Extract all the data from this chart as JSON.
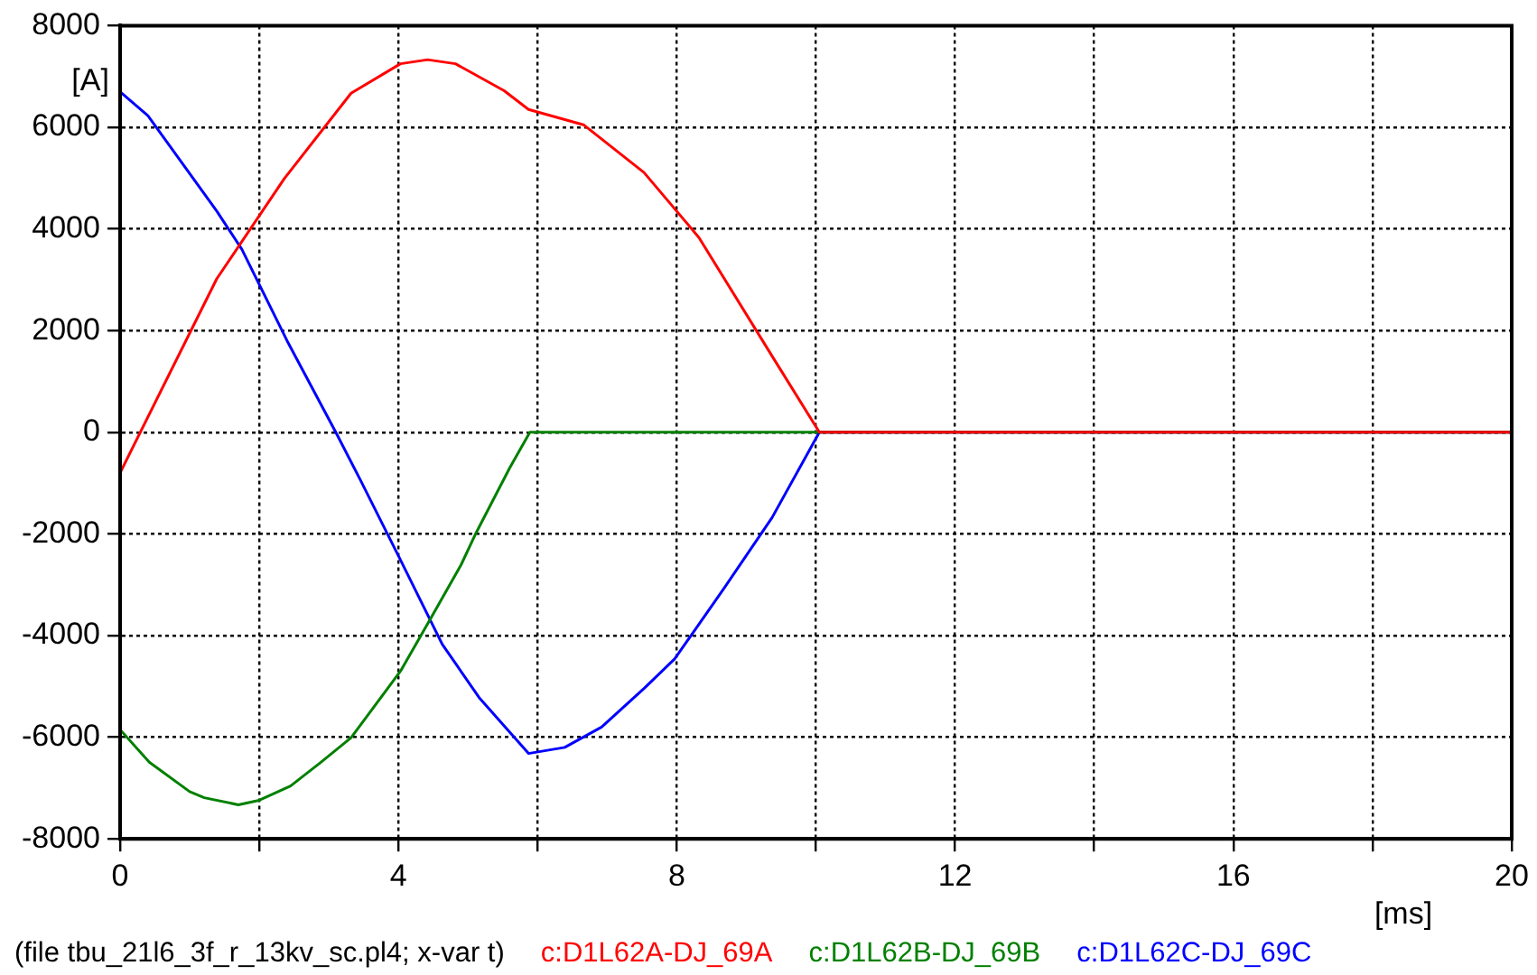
{
  "chart_data": {
    "type": "line",
    "xlabel": "[ms]",
    "ylabel": "[A]",
    "annotations": [
      "(file tbu_21l6_3f_r_13kv_sc.pl4; x-var t)"
    ],
    "xlim": [
      0,
      20
    ],
    "xticks": [
      0,
      {
        "value": 2,
        "label": null
      },
      4,
      {
        "value": 6,
        "label": null
      },
      8,
      {
        "value": 10,
        "label": null
      },
      12,
      {
        "value": 14,
        "label": null
      },
      16,
      {
        "value": 18,
        "label": null
      },
      20
    ],
    "ylim": [
      -8000,
      8000
    ],
    "yticks": [
      -8000,
      -6000,
      -4000,
      -2000,
      0,
      2000,
      4000,
      6000,
      8000
    ],
    "grid": true,
    "legend": "bottom",
    "marker": "none",
    "line_style": "solid",
    "series": [
      {
        "name": "c:D1L62A-DJ_69A",
        "color": "#ff0000",
        "x": [
          0,
          1.39,
          2.36,
          3.32,
          4.03,
          4.42,
          4.82,
          5.52,
          5.87,
          6.66,
          7.53,
          8.32,
          9.37,
          10.05,
          20
        ],
        "values": [
          -800,
          3020,
          4990,
          6670,
          7250,
          7330,
          7250,
          6720,
          6350,
          6050,
          5110,
          3830,
          1500,
          0,
          0
        ]
      },
      {
        "name": "c:D1L62B-DJ_69B",
        "color": "#008000",
        "x": [
          0,
          0.42,
          1.0,
          1.21,
          1.7,
          2.0,
          2.45,
          2.89,
          3.32,
          4.03,
          4.47,
          4.9,
          5.12,
          5.6,
          5.89,
          20
        ],
        "values": [
          -5850,
          -6490,
          -7070,
          -7190,
          -7330,
          -7240,
          -6960,
          -6490,
          -6010,
          -4700,
          -3650,
          -2610,
          -1970,
          -700,
          0,
          0
        ]
      },
      {
        "name": "c:D1L62C-DJ_69C",
        "color": "#0000ff",
        "x": [
          0,
          0.4,
          1.39,
          1.75,
          2.4,
          3.1,
          3.45,
          4.0,
          4.63,
          5.16,
          5.87,
          6.39,
          6.92,
          7.53,
          7.97,
          8.68,
          9.37,
          10.05,
          20
        ],
        "values": [
          6700,
          6230,
          4350,
          3600,
          1800,
          0,
          -930,
          -2430,
          -4170,
          -5220,
          -6320,
          -6200,
          -5800,
          -5040,
          -4460,
          -3070,
          -1680,
          0,
          0
        ]
      }
    ]
  }
}
